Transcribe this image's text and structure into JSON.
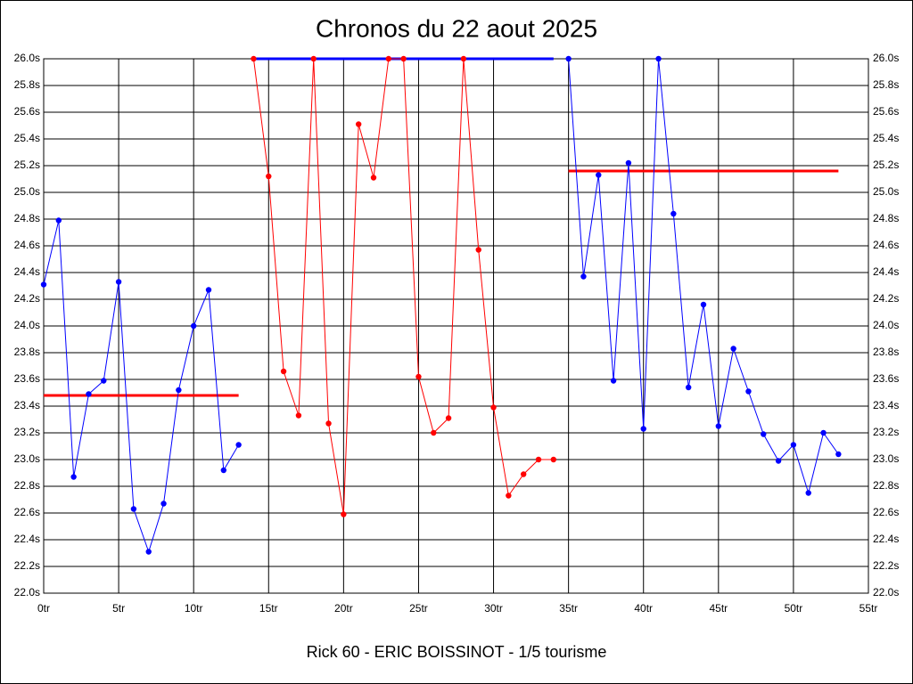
{
  "chart_data": {
    "type": "line",
    "title": "Chronos du 22 aout 2025",
    "xlabel": "Rick 60 - ERIC BOISSINOT - 1/5 tourisme",
    "xlim": [
      0,
      55
    ],
    "ylim": [
      22.0,
      26.0
    ],
    "grid": true,
    "xticks": [
      {
        "value": 0,
        "label": "0tr"
      },
      {
        "value": 5,
        "label": "5tr"
      },
      {
        "value": 10,
        "label": "10tr"
      },
      {
        "value": 15,
        "label": "15tr"
      },
      {
        "value": 20,
        "label": "20tr"
      },
      {
        "value": 25,
        "label": "25tr"
      },
      {
        "value": 30,
        "label": "30tr"
      },
      {
        "value": 35,
        "label": "35tr"
      },
      {
        "value": 40,
        "label": "40tr"
      },
      {
        "value": 45,
        "label": "45tr"
      },
      {
        "value": 50,
        "label": "50tr"
      },
      {
        "value": 55,
        "label": "55tr"
      }
    ],
    "yticks": [
      {
        "value": 22.0,
        "label": "22.0s"
      },
      {
        "value": 22.2,
        "label": "22.2s"
      },
      {
        "value": 22.4,
        "label": "22.4s"
      },
      {
        "value": 22.6,
        "label": "22.6s"
      },
      {
        "value": 22.8,
        "label": "22.8s"
      },
      {
        "value": 23.0,
        "label": "23.0s"
      },
      {
        "value": 23.2,
        "label": "23.2s"
      },
      {
        "value": 23.4,
        "label": "23.4s"
      },
      {
        "value": 23.6,
        "label": "23.6s"
      },
      {
        "value": 23.8,
        "label": "23.8s"
      },
      {
        "value": 24.0,
        "label": "24.0s"
      },
      {
        "value": 24.2,
        "label": "24.2s"
      },
      {
        "value": 24.4,
        "label": "24.4s"
      },
      {
        "value": 24.6,
        "label": "24.6s"
      },
      {
        "value": 24.8,
        "label": "24.8s"
      },
      {
        "value": 25.0,
        "label": "25.0s"
      },
      {
        "value": 25.2,
        "label": "25.2s"
      },
      {
        "value": 25.4,
        "label": "25.4s"
      },
      {
        "value": 25.6,
        "label": "25.6s"
      },
      {
        "value": 25.8,
        "label": "25.8s"
      },
      {
        "value": 26.0,
        "label": "26.0s"
      }
    ],
    "series": [
      {
        "color": "#0000ff",
        "x": [
          0,
          1,
          2,
          3,
          4,
          5,
          6,
          7,
          8,
          9,
          10,
          11,
          12,
          13
        ],
        "values": [
          24.31,
          24.79,
          22.87,
          23.49,
          23.59,
          24.33,
          22.63,
          22.31,
          22.67,
          23.52,
          24.0,
          24.27,
          22.92,
          23.11
        ]
      },
      {
        "color": "#ff0000",
        "x": [
          14,
          15,
          16,
          17,
          18,
          19,
          20,
          21,
          22,
          23,
          24,
          25,
          26,
          27,
          28,
          29,
          30,
          31,
          32,
          33,
          34
        ],
        "values": [
          26.0,
          25.12,
          23.66,
          23.33,
          26.0,
          23.27,
          22.59,
          25.51,
          25.11,
          26.0,
          26.0,
          23.62,
          23.2,
          23.31,
          26.0,
          24.57,
          23.39,
          22.73,
          22.89,
          23.0,
          23.0
        ]
      },
      {
        "color": "#0000ff",
        "x": [
          35,
          36,
          37,
          38,
          39,
          40,
          41,
          42,
          43,
          44,
          45,
          46,
          47,
          48,
          49,
          50,
          51,
          52,
          53
        ],
        "values": [
          26.0,
          24.37,
          25.13,
          23.59,
          25.22,
          23.23,
          26.0,
          24.84,
          23.54,
          24.16,
          23.25,
          23.83,
          23.51,
          23.19,
          22.99,
          23.11,
          22.75,
          23.2,
          23.04
        ]
      }
    ],
    "hlines": [
      {
        "color": "#ff0000",
        "value": 23.48,
        "x": [
          0,
          13
        ]
      },
      {
        "color": "#0000ff",
        "value": 26.0,
        "x": [
          14,
          34
        ]
      },
      {
        "color": "#ff0000",
        "value": 25.16,
        "x": [
          35,
          53
        ]
      }
    ]
  }
}
